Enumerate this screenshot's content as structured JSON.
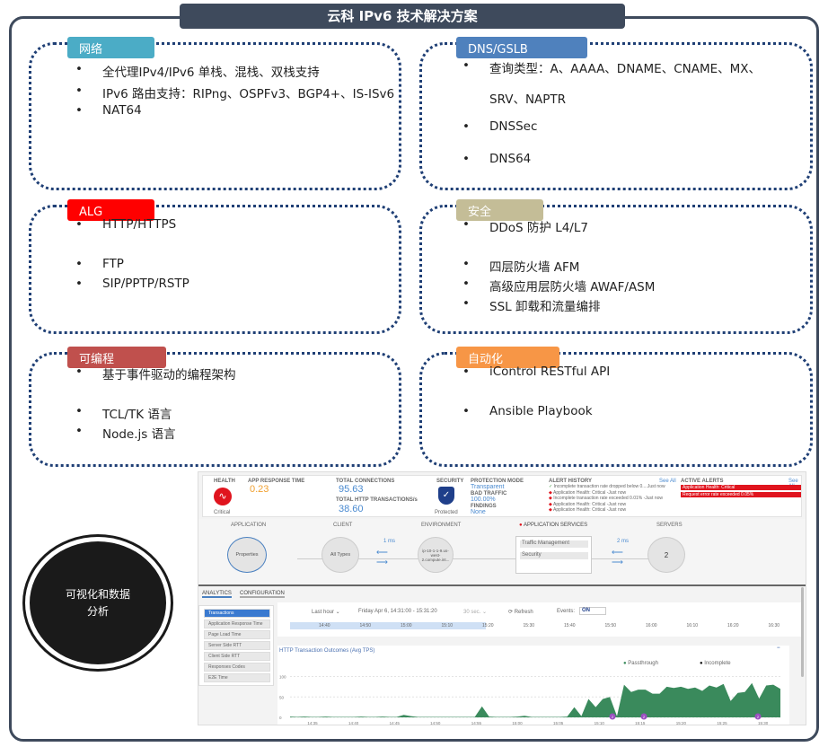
{
  "title": "云科 IPv6 技术解决方案",
  "sections": [
    {
      "label": "网络",
      "color": "#4bacc6",
      "items": [
        "全代理IPv4/IPv6 单栈、混栈、双栈支持",
        "IPv6 路由支持：RIPng、OSPFv3、BGP4+、IS-ISv6",
        "NAT64"
      ]
    },
    {
      "label": "DNS/GSLB",
      "color": "#4f81bd",
      "items": [
        "查询类型：A、AAAA、DNAME、CNAME、MX、",
        "SRV、NAPTR",
        "DNSSec",
        "DNS64"
      ]
    },
    {
      "label": "ALG",
      "color": "#ff0000",
      "items": [
        "HTTP/HTTPS",
        "FTP",
        "SIP/PPTP/RSTP"
      ]
    },
    {
      "label": "安全",
      "color": "#c4bd97",
      "items": [
        "DDoS 防护 L4/L7",
        "四层防火墙 AFM",
        "高级应用层防火墙 AWAF/ASM",
        "SSL 卸载和流量编排"
      ]
    },
    {
      "label": "可编程",
      "color": "#c0504d",
      "items": [
        "基于事件驱动的编程架构",
        "TCL/TK 语言",
        "Node.js 语言"
      ]
    },
    {
      "label": "自动化",
      "color": "#f79646",
      "items": [
        "iControl RESTful API",
        "Ansible Playbook"
      ]
    }
  ],
  "circle_label": "可视化和数据分析",
  "dashboard": {
    "health": {
      "label": "HEALTH",
      "status": "Critical"
    },
    "app_response": {
      "label": "APP RESPONSE TIME",
      "value": "0.23"
    },
    "total_connections": {
      "label": "TOTAL CONNECTIONS",
      "value": "95.63"
    },
    "http_transactions": {
      "label": "TOTAL HTTP TRANSACTIONS/s",
      "value": "38.60"
    },
    "security": {
      "label": "SECURITY",
      "status": "Protected"
    },
    "protection": {
      "mode_label": "PROTECTION MODE",
      "mode": "Transparent",
      "bad_label": "BAD TRAFFIC",
      "bad": "100.00%",
      "findings_label": "FINDINGS",
      "findings": "None"
    },
    "alert_history": {
      "label": "ALERT HISTORY",
      "see_all": "See All",
      "items": [
        "Incomplete transaction rate dropped below 0....Just now",
        "Application Health: Critical -Just now",
        "Incomplete transaction rate exceeded 0.01% -Just now",
        "Application Health: Critical -Just now",
        "Application Health: Critical -Just now"
      ]
    },
    "active_alerts": {
      "label": "ACTIVE ALERTS",
      "see_all": "See All",
      "items": [
        "Application Health: Critical",
        "Request error rate exceeded 0.05%"
      ]
    },
    "flow": {
      "application": "APPLICATION",
      "properties": "Properties",
      "client": "CLIENT",
      "all_types": "All Types",
      "client_latency": "1 ms",
      "environment": "ENVIRONMENT",
      "env_node": "ip-10-1-1-9.us-west-2.compute.int...",
      "app_services": "APPLICATION SERVICES",
      "services": [
        "Traffic Management",
        "Security"
      ],
      "server_latency": "2 ms",
      "servers": "SERVERS",
      "server_count": "2"
    },
    "tabs": [
      "ANALYTICS",
      "CONFIGURATION"
    ],
    "menu": [
      "Transactions",
      "Application Response Time",
      "Page Load Time",
      "Server Side RTT",
      "Client Side RTT",
      "Responses Codes",
      "E2E Time"
    ],
    "range": "Last hour ⌄",
    "period": "Friday Apr 6, 14:31:00 - 15:31:20",
    "interval": "30 sec. ⌄",
    "refresh": "Refresh",
    "events_label": "Events:",
    "events_value": "ON",
    "timeline": [
      "14:40",
      "14:50",
      "15:00",
      "15:10",
      "15:20",
      "15:30",
      "15:40",
      "15:50",
      "16:00",
      "16:10",
      "16:20",
      "16:30"
    ]
  },
  "chart_data": {
    "type": "area",
    "title": "HTTP Transaction Outcomes (Avg TPS)",
    "legend": [
      "Passthrough",
      "Incomplete"
    ],
    "legend_placement": "top-right",
    "x_ticks": [
      "14:35",
      "14:40",
      "14:45",
      "14:50",
      "14:55",
      "15:00",
      "15:05",
      "15:10",
      "15:15",
      "15:20",
      "15:25",
      "15:30"
    ],
    "y_ticks": [
      0,
      50,
      100
    ],
    "ylim": [
      0,
      110
    ],
    "series": [
      {
        "name": "Passthrough",
        "color": "#3a8a5c",
        "values": [
          2,
          1,
          2,
          1,
          1,
          2,
          1,
          1,
          1,
          1,
          2,
          1,
          1,
          2,
          1,
          1,
          6,
          3,
          1,
          1,
          1,
          1,
          1,
          1,
          1,
          1,
          1,
          27,
          2,
          1,
          1,
          1,
          2,
          4,
          1,
          1,
          1,
          1,
          1,
          2,
          25,
          3,
          45,
          25,
          45,
          50,
          3,
          80,
          62,
          68,
          68,
          58,
          58,
          75,
          72,
          75,
          70,
          73,
          65,
          78,
          73,
          82,
          40,
          60,
          62,
          84,
          46,
          78,
          80,
          70
        ]
      }
    ],
    "event_marker_label": "2"
  }
}
